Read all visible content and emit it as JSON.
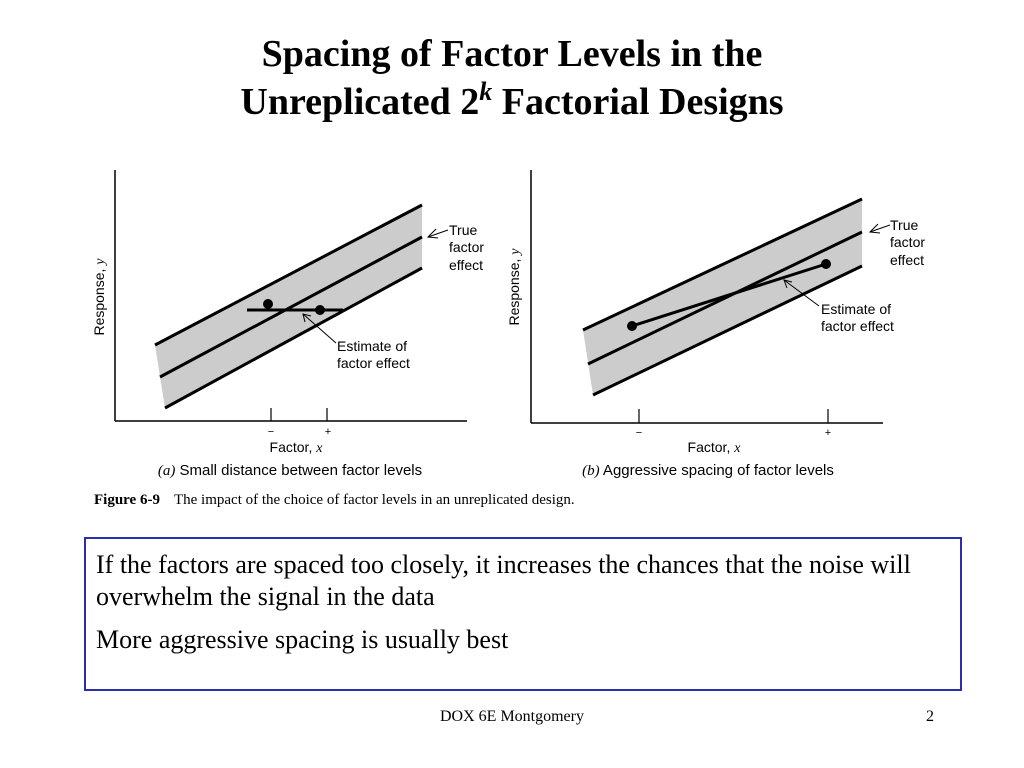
{
  "title": {
    "line1": "Spacing of Factor Levels in the",
    "line2_pre": "Unreplicated 2",
    "line2_sup": "k",
    "line2_post": " Factorial Designs"
  },
  "panel_a": {
    "y_label": "Response, ",
    "y_var": "y",
    "x_label": "Factor, ",
    "x_var": "x",
    "tick_minus": "−",
    "tick_plus": "+",
    "true_effect": [
      "True",
      "factor",
      "effect"
    ],
    "estimate": [
      "Estimate of",
      "factor effect"
    ],
    "subcaption_letter": "(a)",
    "subcaption_text": " Small distance between factor levels"
  },
  "panel_b": {
    "y_label": "Response, ",
    "y_var": "y",
    "x_label": "Factor, ",
    "x_var": "x",
    "tick_minus": "−",
    "tick_plus": "+",
    "true_effect": [
      "True",
      "factor",
      "effect"
    ],
    "estimate": [
      "Estimate of",
      "factor effect"
    ],
    "subcaption_letter": "(b)",
    "subcaption_text": " Aggressive spacing of factor levels"
  },
  "figure_caption": {
    "label": "Figure 6-9",
    "text": "The impact of the choice of factor levels in an unreplicated design."
  },
  "notes": [
    "If the factors are spaced too closely, it increases the chances that the noise will overwhelm the signal in the data",
    "More aggressive spacing is usually best"
  ],
  "footer": {
    "center": "DOX 6E Montgomery",
    "page": "2"
  },
  "colors": {
    "band": "#cccccc",
    "box_border": "#2b2db0"
  }
}
